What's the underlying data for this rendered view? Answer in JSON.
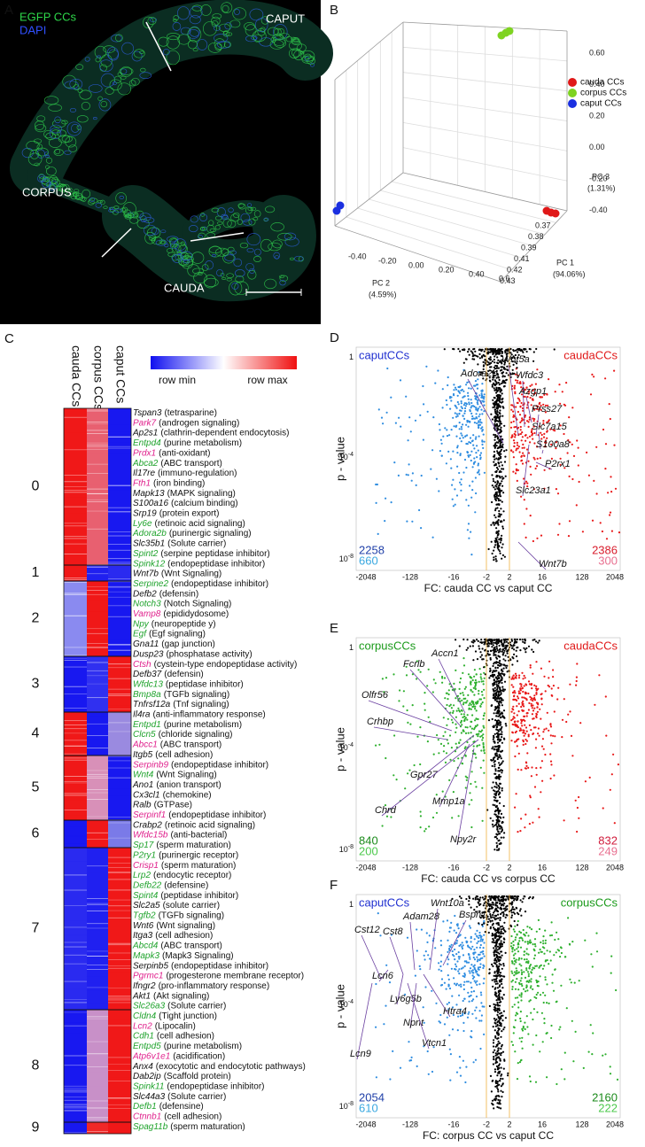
{
  "panel_a": {
    "letter": "A",
    "egfp": "EGFP  CCs",
    "dapi": "DAPI",
    "caput": "CAPUT",
    "corpus": "CORPUS",
    "cauda": "CAUDA"
  },
  "panel_b": {
    "letter": "B",
    "legend": [
      {
        "name": "cauda CCs",
        "color": "#e01818"
      },
      {
        "name": "corpus CCs",
        "color": "#7ed321"
      },
      {
        "name": "caput CCs",
        "color": "#1a2fe0"
      }
    ],
    "pc3": {
      "label": "PC 3",
      "percent": "(1.31%)",
      "ticks": [
        "0.60",
        "0.40",
        "0.20",
        "0.00",
        "-0.20",
        "-0.40"
      ]
    },
    "pc1": {
      "label": "PC 1",
      "percent": "(94.06%)",
      "ticks": [
        "0.37",
        "0.38",
        "0.39",
        "0.41",
        "0.42",
        "0.43"
      ]
    },
    "pc2": {
      "label": "PC 2",
      "percent": "(4.59%)",
      "ticks": [
        "-0.40",
        "-0.20",
        "0.00",
        "0.20",
        "0.40",
        "0.6"
      ]
    }
  },
  "panel_c": {
    "letter": "C",
    "columns": [
      "cauda CCs",
      "corpus CCs",
      "caput CCs"
    ],
    "scale": {
      "min": "row min",
      "max": "row max"
    },
    "clusters": [
      {
        "label": "0",
        "cells": [
          "#f01818",
          "#e86070",
          "#1818f0"
        ],
        "genes": [
          {
            "name": "Tspan3",
            "description": "(tetrasparine)",
            "color": "#111111"
          },
          {
            "name": "Park7",
            "description": "(androgen signaling)",
            "color": "#e0208c"
          },
          {
            "name": "Ap2s1",
            "description": "(clathrin-dependent endocytosis)",
            "color": "#111111"
          },
          {
            "name": "Entpd4",
            "description": "(purine metabolism)",
            "color": "#1fa32c"
          },
          {
            "name": "Prdx1",
            "description": "(anti-oxidant)",
            "color": "#e0208c"
          },
          {
            "name": "Abca2",
            "description": "(ABC transport)",
            "color": "#1fa32c"
          },
          {
            "name": "Il17re",
            "description": "(immuno-regulation)",
            "color": "#111111"
          },
          {
            "name": "Fth1",
            "description": "(iron binding)",
            "color": "#e0208c"
          },
          {
            "name": "Mapk13",
            "description": "(MAPK signaling)",
            "color": "#111111"
          },
          {
            "name": "S100a16",
            "description": "(calcium binding)",
            "color": "#111111"
          },
          {
            "name": "Srp19",
            "description": "(protein export)",
            "color": "#111111"
          },
          {
            "name": "Ly6e",
            "description": "(retinoic acid signaling)",
            "color": "#1fa32c"
          },
          {
            "name": "Adora2b",
            "description": "(purinergic signaling)",
            "color": "#1fa32c"
          },
          {
            "name": "Slc35b1",
            "description": "(Solute carrier)",
            "color": "#111111"
          },
          {
            "name": "Spint2",
            "description": "(serpine peptidase inhibitor)",
            "color": "#1fa32c"
          },
          {
            "name": "Spink12",
            "description": "(endopeptidase inhibitor)",
            "color": "#1fa32c"
          }
        ]
      },
      {
        "label": "1",
        "cells": [
          "#f01818",
          "#2020f0",
          "#2a2af0"
        ],
        "genes": [
          {
            "name": "Wnt7b",
            "description": "(Wnt Signaling)",
            "color": "#111111"
          },
          {
            "name": "Serpine2",
            "description": "(endopeptidase inhibitor)",
            "color": "#1fa32c"
          },
          {
            "name": "Defb2",
            "description": "(defensin)",
            "color": "#111111"
          }
        ]
      },
      {
        "label": "2",
        "cells": [
          "#8a8af0",
          "#f01818",
          "#1818f0"
        ],
        "genes": [
          {
            "name": "Notch3",
            "description": "(Notch Signaling)",
            "color": "#1fa32c"
          },
          {
            "name": "Vamp8",
            "description": "(epididydosome)",
            "color": "#e0208c"
          },
          {
            "name": "Npy",
            "description": "(neuropeptide y)",
            "color": "#1fa32c"
          },
          {
            "name": "Egf",
            "description": "(Egf signaling)",
            "color": "#1fa32c"
          },
          {
            "name": "Gna11",
            "description": "(gap junction)",
            "color": "#111111"
          },
          {
            "name": "Dusp23",
            "description": "(phosphatase activity)",
            "color": "#111111"
          },
          {
            "name": "Ctsh",
            "description": "(cystein-type endopeptidase activity)",
            "color": "#e0208c"
          },
          {
            "name": "Defb37",
            "description": "(defensin)",
            "color": "#111111"
          },
          {
            "name": "Wfdc13",
            "description": "(peptidase inhibitor)",
            "color": "#1fa32c"
          }
        ]
      },
      {
        "label": "3",
        "cells": [
          "#1818f0",
          "#3030f0",
          "#f01818"
        ],
        "genes": [
          {
            "name": "Bmp8a",
            "description": "(TGFb signaling)",
            "color": "#1fa32c"
          },
          {
            "name": "Tnfrsf12a",
            "description": "(Tnf signaling)",
            "color": "#111111"
          },
          {
            "name": "Il4ra",
            "description": "(anti-inflammatory response)",
            "color": "#111111"
          },
          {
            "name": "Entpd1",
            "description": "(purine metabolism)",
            "color": "#1fa32c"
          },
          {
            "name": "Clcn5",
            "description": "(chloride signaling)",
            "color": "#1fa32c"
          },
          {
            "name": "Abcc1",
            "description": "(ABC transport)",
            "color": "#e0208c"
          },
          {
            "name": "Itgb5",
            "description": "(cell adhesion)",
            "color": "#111111"
          },
          {
            "name": "Serpinb9",
            "description": "(endopeptidase inhibitor)",
            "color": "#e0208c"
          }
        ]
      },
      {
        "label": "4",
        "cells": [
          "#f01818",
          "#1818f0",
          "#9a8ae0"
        ],
        "genes": [
          {
            "name": "Wnt4",
            "description": "(Wnt Signaling)",
            "color": "#1fa32c"
          },
          {
            "name": "Ano1",
            "description": "(anion transport)",
            "color": "#111111"
          },
          {
            "name": "Cx3cl1",
            "description": "(chemokine)",
            "color": "#111111"
          },
          {
            "name": "Ralb",
            "description": "(GTPase)",
            "color": "#111111"
          }
        ]
      },
      {
        "label": "5",
        "cells": [
          "#f01818",
          "#d890b8",
          "#1818f0"
        ],
        "genes": [
          {
            "name": "Serpinf1",
            "description": "(endopeptidase inhibitor)",
            "color": "#e0208c"
          },
          {
            "name": "Crabp2",
            "description": "(retinoic acid signaling)",
            "color": "#111111"
          },
          {
            "name": "Wfdc15b",
            "description": "(anti-bacterial)",
            "color": "#e0208c"
          },
          {
            "name": "Sp17",
            "description": "(sperm maturation)",
            "color": "#1fa32c"
          },
          {
            "name": "P2ry1",
            "description": "(purinergic receptor)",
            "color": "#1fa32c"
          },
          {
            "name": "Crisp1",
            "description": "(sperm maturation)",
            "color": "#e0208c"
          },
          {
            "name": "Lrp2",
            "description": "(endocytic receptor)",
            "color": "#1fa32c"
          }
        ]
      },
      {
        "label": "6",
        "cells": [
          "#1818f0",
          "#f01818",
          "#7a7ae8"
        ],
        "genes": [
          {
            "name": "Defb22",
            "description": "(defensine)",
            "color": "#1fa32c"
          },
          {
            "name": "Spint4",
            "description": "(peptidase inhibitor)",
            "color": "#1fa32c"
          },
          {
            "name": "Slc2a5",
            "description": "(solute carrier)",
            "color": "#111111"
          }
        ]
      },
      {
        "label": "7",
        "cells": [
          "#2a2af0",
          "#2020f0",
          "#f01818"
        ],
        "genes": [
          {
            "name": "Tgfb2",
            "description": "(TGFb signaling)",
            "color": "#1fa32c"
          },
          {
            "name": "Wnt6",
            "description": "(Wnt signaling)",
            "color": "#111111"
          },
          {
            "name": "Itga3",
            "description": "(cell adhesion)",
            "color": "#111111"
          },
          {
            "name": "Abcd4",
            "description": "(ABC transport)",
            "color": "#1fa32c"
          },
          {
            "name": "Mapk3",
            "description": "(Mapk3 Signaling)",
            "color": "#1fa32c"
          },
          {
            "name": "Serpinb5",
            "description": "(endopeptidase inhibitor)",
            "color": "#111111"
          },
          {
            "name": "Pgrmc1",
            "description": "(progesterone membrane receptor)",
            "color": "#e0208c"
          },
          {
            "name": "Ifngr2",
            "description": "(pro-inflammatory response)",
            "color": "#111111"
          },
          {
            "name": "Akt1",
            "description": "(Akt signaling)",
            "color": "#111111"
          },
          {
            "name": "Slc26a3",
            "description": "(Solute carrier)",
            "color": "#1fa32c"
          },
          {
            "name": "Cldn4",
            "description": "(Tight junction)",
            "color": "#1fa32c"
          },
          {
            "name": "Lcn2",
            "description": "(Lipocalin)",
            "color": "#e0208c"
          }
        ]
      },
      {
        "label": "8",
        "cells": [
          "#1818f0",
          "#c890c8",
          "#f01818"
        ],
        "genes": [
          {
            "name": "Cdh1",
            "description": "(cell adhesion)",
            "color": "#1fa32c"
          },
          {
            "name": "Entpd5",
            "description": "(purine metabolism)",
            "color": "#1fa32c"
          },
          {
            "name": "Atp6v1e1",
            "description": "(acidification)",
            "color": "#e0208c"
          },
          {
            "name": "Anx4",
            "description": "(exocytotic and endocytotic pathways)",
            "color": "#111111"
          },
          {
            "name": "Dab2ip",
            "description": "(Scaffold protein)",
            "color": "#111111"
          },
          {
            "name": "Spink11",
            "description": "(endopeptidase inhibitor)",
            "color": "#1fa32c"
          },
          {
            "name": "Slc44a3",
            "description": "(Solute carrier)",
            "color": "#111111"
          },
          {
            "name": "Defb1",
            "description": "(defensine)",
            "color": "#1fa32c"
          },
          {
            "name": "Ctnnb1",
            "description": "(cell adhesion)",
            "color": "#e0208c"
          }
        ]
      },
      {
        "label": "9",
        "cells": [
          "#1818f0",
          "#f02828",
          "#f01818"
        ],
        "genes": [
          {
            "name": "Spag11b",
            "description": "(sperm maturation)",
            "color": "#1fa32c"
          }
        ]
      }
    ]
  },
  "volcanoes": [
    {
      "letter": "D",
      "left_title": {
        "text": "caputCCs",
        "color": "#2030d0"
      },
      "right_title": {
        "text": "caudaCCs",
        "color": "#e01818"
      },
      "left_dots": "#2f8de0",
      "right_dots": "#e81818",
      "y_label": "p - value",
      "yticks": [
        {
          "text": "1"
        },
        {
          "text": "10",
          "sup": "-4"
        },
        {
          "text": "10",
          "sup": "-8"
        }
      ],
      "xticks": [
        "-2048",
        "-128",
        "-16",
        "-2",
        "2",
        "16",
        "128",
        "2048"
      ],
      "x_label": "FC: cauda CC vs caput CC",
      "counts_left": [
        {
          "text": "2258",
          "color": "#1f3fa8"
        },
        {
          "text": "660",
          "color": "#3aa8e0"
        }
      ],
      "counts_right": [
        {
          "text": "2386",
          "color": "#d81c2c"
        },
        {
          "text": "300",
          "color": "#e87090"
        }
      ],
      "genes": [
        "Adora2b",
        "Wnt5a",
        "Wfdc3",
        "Azgp1",
        "Prss27",
        "Slc7a15",
        "S100a8",
        "P2rx1",
        "Slc23a1",
        "Wnt7b"
      ]
    },
    {
      "letter": "E",
      "left_title": {
        "text": "corpusCCs",
        "color": "#1a9a1a"
      },
      "right_title": {
        "text": "caudaCCs",
        "color": "#e01818"
      },
      "left_dots": "#2fb02f",
      "right_dots": "#e81818",
      "y_label": "p - value",
      "yticks": [
        {
          "text": "1"
        },
        {
          "text": "10",
          "sup": "-4"
        },
        {
          "text": "10",
          "sup": "-8"
        }
      ],
      "xticks": [
        "-2048",
        "-128",
        "-16",
        "-2",
        "2",
        "16",
        "128",
        "2048"
      ],
      "x_label": "FC: cauda CC vs corpus CC",
      "counts_left": [
        {
          "text": "840",
          "color": "#1a8a1a"
        },
        {
          "text": "200",
          "color": "#4cc94c"
        }
      ],
      "counts_right": [
        {
          "text": "832",
          "color": "#d01c3c"
        },
        {
          "text": "249",
          "color": "#e87090"
        }
      ],
      "genes": [
        "Accn1",
        "Fcrlb",
        "Olfr56",
        "Crhbp",
        "Gpr27",
        "Chrd",
        "Mmp1a",
        "Npy2r"
      ]
    },
    {
      "letter": "F",
      "left_title": {
        "text": "caputCCs",
        "color": "#2030d0"
      },
      "right_title": {
        "text": "corpusCCs",
        "color": "#1a9a1a"
      },
      "left_dots": "#2f8de0",
      "right_dots": "#2fb02f",
      "y_label": "p - value",
      "yticks": [
        {
          "text": "1"
        },
        {
          "text": "10",
          "sup": "-4"
        },
        {
          "text": "10",
          "sup": "-8"
        }
      ],
      "xticks": [
        "-2048",
        "-128",
        "-16",
        "-2",
        "2",
        "16",
        "128",
        "2048"
      ],
      "x_label": "FC: corpus CC vs caput CC",
      "counts_left": [
        {
          "text": "2054",
          "color": "#1f3fa8"
        },
        {
          "text": "610",
          "color": "#3aa8e0"
        }
      ],
      "counts_right": [
        {
          "text": "2160",
          "color": "#1a8a1a"
        },
        {
          "text": "222",
          "color": "#4cc94c"
        }
      ],
      "genes": [
        "Wnt10a",
        "Bsph1",
        "Adam28",
        "Cst8",
        "Cst12",
        "Lcn6",
        "Ly6g5b",
        "Npnt",
        "Htra4",
        "Vtcn1",
        "Lcn9"
      ]
    }
  ]
}
